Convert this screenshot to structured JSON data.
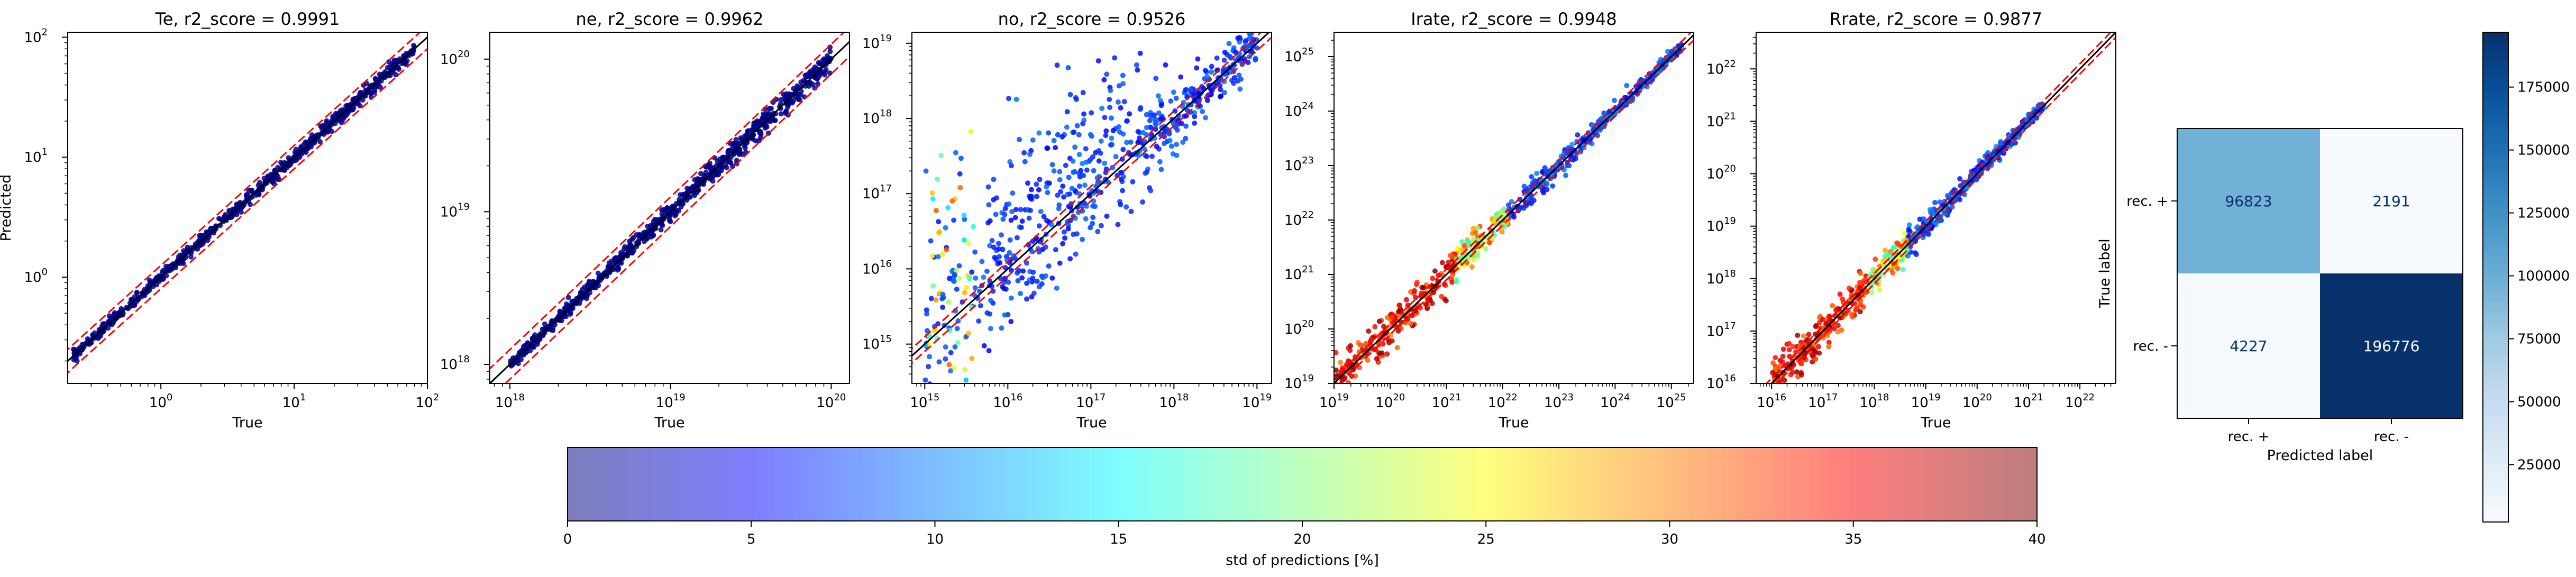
{
  "figure": {
    "scatter_panels": [
      {
        "title": "Te, r2_score = 0.9991",
        "type": "scatter",
        "xlabel": "True",
        "ylabel": "Predicted",
        "scale": "log",
        "xlim": [
          0.2,
          100
        ],
        "ylim": [
          0.13,
          110
        ],
        "xticks": [
          {
            "v": 1,
            "exp": "0"
          },
          {
            "v": 10,
            "exp": "1"
          },
          {
            "v": 100,
            "exp": "2"
          }
        ],
        "yticks": [
          {
            "v": 1,
            "exp": "0"
          },
          {
            "v": 10,
            "exp": "1"
          },
          {
            "v": 100,
            "exp": "2"
          }
        ],
        "data_range": [
          0.22,
          80
        ],
        "spread_low": 0.02,
        "spread_high": 0.03,
        "band_factor": 1.25,
        "color_style": "dark"
      },
      {
        "title": "ne, r2_score = 0.9962",
        "type": "scatter",
        "xlabel": "True",
        "ylabel": "",
        "scale": "log",
        "xlim": [
          7.5e+17,
          1.3e+20
        ],
        "ylim": [
          7.5e+17,
          1.5e+20
        ],
        "xticks": [
          {
            "v": 1e+18,
            "exp": "18"
          },
          {
            "v": 1e+19,
            "exp": "19"
          },
          {
            "v": 1e+20,
            "exp": "20"
          }
        ],
        "yticks": [
          {
            "v": 1e+18,
            "exp": "18"
          },
          {
            "v": 1e+19,
            "exp": "19"
          },
          {
            "v": 1e+20,
            "exp": "20"
          }
        ],
        "data_range": [
          1e+18,
          1e+20
        ],
        "spread_low": 0.02,
        "spread_high": 0.04,
        "band_factor": 1.25,
        "color_style": "dark"
      },
      {
        "title": "no, r2_score = 0.9526",
        "type": "scatter",
        "xlabel": "True",
        "ylabel": "",
        "scale": "log",
        "xlim": [
          700000000000000.0,
          1.5e+19
        ],
        "ylim": [
          300000000000000.0,
          1.4e+19
        ],
        "xticks": [
          {
            "v": 1000000000000000.0,
            "exp": "15"
          },
          {
            "v": 1e+16,
            "exp": "16"
          },
          {
            "v": 1e+17,
            "exp": "17"
          },
          {
            "v": 1e+18,
            "exp": "18"
          },
          {
            "v": 1e+19,
            "exp": "19"
          }
        ],
        "yticks": [
          {
            "v": 1000000000000000.0,
            "exp": "15"
          },
          {
            "v": 1e+16,
            "exp": "16"
          },
          {
            "v": 1e+17,
            "exp": "17"
          },
          {
            "v": 1e+18,
            "exp": "18"
          },
          {
            "v": 1e+19,
            "exp": "19"
          }
        ],
        "data_range": [
          1000000000000000.0,
          1e+19
        ],
        "spread_low": 0.6,
        "spread_high": 0.15,
        "band_factor": 1.25,
        "color_style": "blue"
      },
      {
        "title": "Irate, r2_score = 0.9948",
        "type": "scatter",
        "xlabel": "True",
        "ylabel": "",
        "scale": "log",
        "xlim": [
          1e+19,
          2.5e+25
        ],
        "ylim": [
          1e+19,
          2.8e+25
        ],
        "xticks": [
          {
            "v": 1e+19,
            "exp": "19"
          },
          {
            "v": 1e+20,
            "exp": "20"
          },
          {
            "v": 1e+21,
            "exp": "21"
          },
          {
            "v": 1e+22,
            "exp": "22"
          },
          {
            "v": 1e+23,
            "exp": "23"
          },
          {
            "v": 1e+24,
            "exp": "24"
          },
          {
            "v": 1e+25,
            "exp": "25"
          }
        ],
        "yticks": [
          {
            "v": 1e+19,
            "exp": "19"
          },
          {
            "v": 1e+20,
            "exp": "20"
          },
          {
            "v": 1e+21,
            "exp": "21"
          },
          {
            "v": 1e+22,
            "exp": "22"
          },
          {
            "v": 1e+23,
            "exp": "23"
          },
          {
            "v": 1e+24,
            "exp": "24"
          },
          {
            "v": 1e+25,
            "exp": "25"
          }
        ],
        "data_range": [
          1e+19,
          1.6e+25
        ],
        "spread_low": 0.22,
        "spread_high": 0.04,
        "band_factor": 1.25,
        "color_style": "warm"
      },
      {
        "title": "Rrate, r2_score = 0.9877",
        "type": "scatter",
        "xlabel": "True",
        "ylabel": "",
        "scale": "log",
        "xlim": [
          5000000000000000.0,
          5e+22
        ],
        "ylim": [
          1e+16,
          5e+22
        ],
        "xticks": [
          {
            "v": 1e+16,
            "exp": "16"
          },
          {
            "v": 1e+17,
            "exp": "17"
          },
          {
            "v": 1e+18,
            "exp": "18"
          },
          {
            "v": 1e+19,
            "exp": "19"
          },
          {
            "v": 1e+20,
            "exp": "20"
          },
          {
            "v": 1e+21,
            "exp": "21"
          },
          {
            "v": 1e+22,
            "exp": "22"
          }
        ],
        "yticks": [
          {
            "v": 1e+16,
            "exp": "16"
          },
          {
            "v": 1e+17,
            "exp": "17"
          },
          {
            "v": 1e+18,
            "exp": "18"
          },
          {
            "v": 1e+19,
            "exp": "19"
          },
          {
            "v": 1e+20,
            "exp": "20"
          },
          {
            "v": 1e+21,
            "exp": "21"
          },
          {
            "v": 1e+22,
            "exp": "22"
          }
        ],
        "data_range": [
          1e+16,
          2e+21
        ],
        "spread_low": 0.22,
        "spread_high": 0.05,
        "band_factor": 1.25,
        "color_style": "warm"
      }
    ],
    "confusion_matrix": {
      "type": "heatmap",
      "xlabel": "Predicted label",
      "ylabel": "True label",
      "x_categories": [
        "rec. +",
        "rec. -"
      ],
      "y_categories": [
        "rec. +",
        "rec. -"
      ],
      "values": [
        [
          96823,
          2191
        ],
        [
          4227,
          196776
        ]
      ],
      "colormap": "Blues",
      "vmin": 2191,
      "vmax": 196776,
      "colorbar_ticks": [
        "25000",
        "50000",
        "75000",
        "100000",
        "125000",
        "150000",
        "175000"
      ],
      "colorbar_tick_values": [
        25000,
        50000,
        75000,
        100000,
        125000,
        150000,
        175000
      ]
    },
    "std_colorbar": {
      "label": "std of predictions [%]",
      "colormap": "jet",
      "alpha": 0.5,
      "ticks": [
        "0",
        "5",
        "10",
        "15",
        "20",
        "25",
        "30",
        "35",
        "40"
      ],
      "tick_values": [
        0,
        5,
        10,
        15,
        20,
        25,
        30,
        35,
        40
      ],
      "range": [
        0,
        40
      ]
    },
    "line_colors": {
      "identity": "#000000",
      "band": "#ff0000",
      "scatter_dark": "#00008b"
    }
  }
}
